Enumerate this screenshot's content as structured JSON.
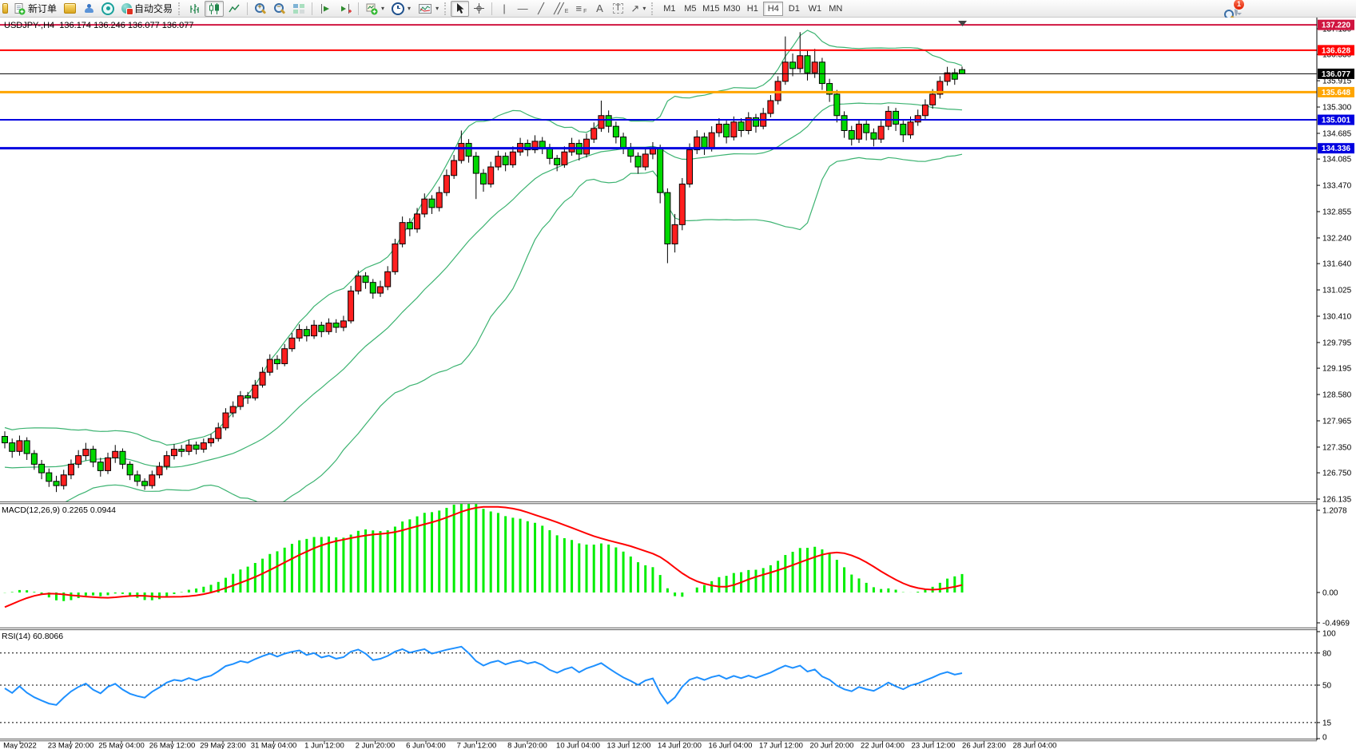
{
  "toolbar": {
    "new_order_label": "新订单",
    "auto_trading_label": "自动交易",
    "timeframes": [
      "M1",
      "M5",
      "M15",
      "M30",
      "H1",
      "H4",
      "D1",
      "W1",
      "MN"
    ],
    "active_timeframe": "H4",
    "notification_count": "1"
  },
  "icons": {
    "vline": "|",
    "hline": "—",
    "slash": "╱",
    "double_slash": "╱╱",
    "fib_lines": "≡",
    "letter_a": "A",
    "letter_t": "T",
    "arrow_ne": "↗",
    "caret": "▾",
    "sub_e": "E",
    "sub_f": "F",
    "plus": "+",
    "minus": "−"
  },
  "chart": {
    "title": "USDJPY-,H4  136.174 136.246 136.077 136.077"
  },
  "chart_data": {
    "type": "candlestick",
    "symbol": "USDJPY-",
    "timeframe": "H4",
    "current_bar": {
      "open": 136.174,
      "high": 136.246,
      "low": 136.077,
      "close": 136.077
    },
    "last_price": {
      "value": 136.077,
      "label": "136.077",
      "color": "#000000"
    },
    "price_axis_ticks": [
      137.13,
      136.53,
      135.915,
      135.3,
      134.685,
      134.085,
      133.47,
      132.855,
      132.24,
      131.64,
      131.025,
      130.41,
      129.795,
      129.195,
      128.58,
      127.965,
      127.35,
      126.75,
      126.135
    ],
    "time_axis_labels": [
      "May 2022",
      "23 May 20:00",
      "25 May 04:00",
      "26 May 12:00",
      "29 May 23:00",
      "31 May 04:00",
      "1 Jun 12:00",
      "2 Jun 20:00",
      "6 Jun 04:00",
      "7 Jun 12:00",
      "8 Jun 20:00",
      "10 Jun 04:00",
      "13 Jun 12:00",
      "14 Jun 20:00",
      "16 Jun 04:00",
      "17 Jun 12:00",
      "20 Jun 20:00",
      "22 Jun 04:00",
      "23 Jun 12:00",
      "26 Jun 23:00",
      "28 Jun 04:00"
    ],
    "horizontal_lines": [
      {
        "price": 137.22,
        "label": "137.220",
        "color": "#D01540",
        "width": 2
      },
      {
        "price": 136.628,
        "label": "136.628",
        "color": "#FF0000",
        "width": 2
      },
      {
        "price": 135.648,
        "label": "135.648",
        "color": "#FFA500",
        "width": 3
      },
      {
        "price": 135.001,
        "label": "135.001",
        "color": "#0000E0",
        "width": 2
      },
      {
        "price": 134.336,
        "label": "134.336",
        "color": "#0000E0",
        "width": 3
      }
    ],
    "candle_colors": {
      "up": "#ff1f1f",
      "down": "#00d800",
      "outline": "#000000"
    },
    "bollinger": {
      "period": 20,
      "deviation": 2,
      "color": "#3CB371"
    },
    "macd": {
      "label": "MACD(12,26,9) 0.2265 0.0944",
      "fast": 12,
      "slow": 26,
      "signal": 9,
      "value_main": 0.2265,
      "value_signal": 0.0944,
      "axis": {
        "max": 1.2078,
        "zero": "0.00",
        "min": -0.4969
      },
      "axis_labels": [
        "1.2078",
        "0.00",
        "-0.4969"
      ],
      "hist_color": "#00EE00",
      "signal_color": "#FF0000"
    },
    "rsi": {
      "label": "RSI(14) 60.8066",
      "period": 14,
      "value": 60.8066,
      "levels": [
        80,
        50,
        15
      ],
      "axis_labels": [
        "100",
        "80",
        "50",
        "15",
        "0"
      ],
      "color": "#1E90FF"
    },
    "history_closes": [
      127.75,
      127.55,
      127.35,
      127.1,
      126.85,
      126.65,
      126.5,
      126.4,
      126.3,
      126.25,
      126.3,
      126.45,
      126.4,
      126.6,
      126.8,
      127.0,
      127.2,
      127.35,
      127.5,
      127.6
    ],
    "candles": [
      [
        127.6,
        127.72,
        127.32,
        127.45
      ],
      [
        127.45,
        127.55,
        127.1,
        127.25
      ],
      [
        127.25,
        127.62,
        127.15,
        127.5
      ],
      [
        127.5,
        127.58,
        127.05,
        127.2
      ],
      [
        127.2,
        127.28,
        126.82,
        126.95
      ],
      [
        126.95,
        127.05,
        126.6,
        126.75
      ],
      [
        126.75,
        126.85,
        126.42,
        126.55
      ],
      [
        126.55,
        126.68,
        126.3,
        126.45
      ],
      [
        126.45,
        126.82,
        126.36,
        126.7
      ],
      [
        126.7,
        127.06,
        126.6,
        126.95
      ],
      [
        126.95,
        127.28,
        126.86,
        127.15
      ],
      [
        127.15,
        127.45,
        127.04,
        127.3
      ],
      [
        127.3,
        127.38,
        126.88,
        127.0
      ],
      [
        127.0,
        127.1,
        126.66,
        126.8
      ],
      [
        126.8,
        127.22,
        126.72,
        127.1
      ],
      [
        127.1,
        127.4,
        126.98,
        127.25
      ],
      [
        127.25,
        127.32,
        126.84,
        126.95
      ],
      [
        126.95,
        127.02,
        126.58,
        126.7
      ],
      [
        126.7,
        126.8,
        126.44,
        126.55
      ],
      [
        126.55,
        126.62,
        126.35,
        126.45
      ],
      [
        126.45,
        126.8,
        126.38,
        126.7
      ],
      [
        126.7,
        127.0,
        126.62,
        126.9
      ],
      [
        126.9,
        127.26,
        126.82,
        127.15
      ],
      [
        127.15,
        127.42,
        127.06,
        127.3
      ],
      [
        127.3,
        127.4,
        127.12,
        127.25
      ],
      [
        127.25,
        127.52,
        127.16,
        127.4
      ],
      [
        127.4,
        127.48,
        127.18,
        127.3
      ],
      [
        127.3,
        127.55,
        127.22,
        127.45
      ],
      [
        127.45,
        127.66,
        127.36,
        127.55
      ],
      [
        127.55,
        127.92,
        127.48,
        127.8
      ],
      [
        127.8,
        128.26,
        127.74,
        128.15
      ],
      [
        128.15,
        128.42,
        128.05,
        128.3
      ],
      [
        128.3,
        128.66,
        128.22,
        128.55
      ],
      [
        128.55,
        128.64,
        128.36,
        128.5
      ],
      [
        128.5,
        128.92,
        128.44,
        128.8
      ],
      [
        128.8,
        129.22,
        128.74,
        129.1
      ],
      [
        129.1,
        129.52,
        129.02,
        129.4
      ],
      [
        129.4,
        129.5,
        129.16,
        129.3
      ],
      [
        129.3,
        129.76,
        129.24,
        129.65
      ],
      [
        129.65,
        130.02,
        129.58,
        129.9
      ],
      [
        129.9,
        130.22,
        129.82,
        130.1
      ],
      [
        130.1,
        130.18,
        129.82,
        129.95
      ],
      [
        129.95,
        130.32,
        129.88,
        130.2
      ],
      [
        130.2,
        130.28,
        129.92,
        130.05
      ],
      [
        130.05,
        130.36,
        129.98,
        130.25
      ],
      [
        130.25,
        130.34,
        130.02,
        130.15
      ],
      [
        130.15,
        130.42,
        130.06,
        130.3
      ],
      [
        130.3,
        131.12,
        130.24,
        131.0
      ],
      [
        131.0,
        131.48,
        130.92,
        131.35
      ],
      [
        131.35,
        131.44,
        131.05,
        131.2
      ],
      [
        131.2,
        131.28,
        130.82,
        130.95
      ],
      [
        130.95,
        131.24,
        130.86,
        131.1
      ],
      [
        131.1,
        131.58,
        131.02,
        131.45
      ],
      [
        131.45,
        132.22,
        131.38,
        132.1
      ],
      [
        132.1,
        132.74,
        132.02,
        132.6
      ],
      [
        132.6,
        132.7,
        132.28,
        132.45
      ],
      [
        132.45,
        132.94,
        132.36,
        132.8
      ],
      [
        132.8,
        133.28,
        132.72,
        133.15
      ],
      [
        133.15,
        133.24,
        132.8,
        132.95
      ],
      [
        132.95,
        133.44,
        132.86,
        133.3
      ],
      [
        133.3,
        133.84,
        133.22,
        133.7
      ],
      [
        133.7,
        134.18,
        133.62,
        134.05
      ],
      [
        134.05,
        134.75,
        133.98,
        134.45
      ],
      [
        134.45,
        134.55,
        134.0,
        134.15
      ],
      [
        134.15,
        134.25,
        133.15,
        133.75
      ],
      [
        133.75,
        133.85,
        133.32,
        133.5
      ],
      [
        133.5,
        134.02,
        133.42,
        133.9
      ],
      [
        133.9,
        134.28,
        133.82,
        134.15
      ],
      [
        134.15,
        134.24,
        133.8,
        133.95
      ],
      [
        133.95,
        134.38,
        133.88,
        134.25
      ],
      [
        134.25,
        134.58,
        134.16,
        134.45
      ],
      [
        134.45,
        134.54,
        134.15,
        134.3
      ],
      [
        134.3,
        134.64,
        134.22,
        134.5
      ],
      [
        134.5,
        134.6,
        134.2,
        134.35
      ],
      [
        134.35,
        134.44,
        133.96,
        134.1
      ],
      [
        134.1,
        134.18,
        133.8,
        133.95
      ],
      [
        133.95,
        134.38,
        133.88,
        134.25
      ],
      [
        134.25,
        134.58,
        134.16,
        134.45
      ],
      [
        134.45,
        134.54,
        134.05,
        134.2
      ],
      [
        134.2,
        134.68,
        134.12,
        134.55
      ],
      [
        134.55,
        134.94,
        134.46,
        134.8
      ],
      [
        134.8,
        135.45,
        134.72,
        135.1
      ],
      [
        135.1,
        135.22,
        134.7,
        134.85
      ],
      [
        134.85,
        134.96,
        134.45,
        134.6
      ],
      [
        134.6,
        134.7,
        134.2,
        134.35
      ],
      [
        134.35,
        134.46,
        134.0,
        134.15
      ],
      [
        134.15,
        134.24,
        133.74,
        133.9
      ],
      [
        133.9,
        134.34,
        133.82,
        134.2
      ],
      [
        134.2,
        134.48,
        134.08,
        134.35
      ],
      [
        134.35,
        134.42,
        133.05,
        133.3
      ],
      [
        133.3,
        133.4,
        131.65,
        132.1
      ],
      [
        132.1,
        132.8,
        131.9,
        132.55
      ],
      [
        132.55,
        133.64,
        132.42,
        133.5
      ],
      [
        133.5,
        134.45,
        133.42,
        134.3
      ],
      [
        134.3,
        134.76,
        134.2,
        134.6
      ],
      [
        134.6,
        134.7,
        134.18,
        134.35
      ],
      [
        134.35,
        134.85,
        134.26,
        134.7
      ],
      [
        134.7,
        135.04,
        134.6,
        134.9
      ],
      [
        134.9,
        134.98,
        134.45,
        134.6
      ],
      [
        134.6,
        135.08,
        134.52,
        134.95
      ],
      [
        134.95,
        135.04,
        134.6,
        134.75
      ],
      [
        134.75,
        135.18,
        134.66,
        135.05
      ],
      [
        135.05,
        135.14,
        134.7,
        134.85
      ],
      [
        134.85,
        135.28,
        134.78,
        135.15
      ],
      [
        135.15,
        135.58,
        135.06,
        135.45
      ],
      [
        135.45,
        136.02,
        135.36,
        135.9
      ],
      [
        135.9,
        136.95,
        135.82,
        136.35
      ],
      [
        136.35,
        136.55,
        136.02,
        136.2
      ],
      [
        136.2,
        137.05,
        136.1,
        136.5
      ],
      [
        136.5,
        136.62,
        135.92,
        136.1
      ],
      [
        136.1,
        136.66,
        135.98,
        136.35
      ],
      [
        136.35,
        136.45,
        135.7,
        135.85
      ],
      [
        135.85,
        135.96,
        135.42,
        135.6
      ],
      [
        135.6,
        135.7,
        134.94,
        135.1
      ],
      [
        135.1,
        135.2,
        134.58,
        134.75
      ],
      [
        134.75,
        134.86,
        134.4,
        134.55
      ],
      [
        134.55,
        135.02,
        134.46,
        134.9
      ],
      [
        134.9,
        134.98,
        134.52,
        134.7
      ],
      [
        134.7,
        134.8,
        134.38,
        134.55
      ],
      [
        134.55,
        134.98,
        134.46,
        134.85
      ],
      [
        134.85,
        135.32,
        134.76,
        135.2
      ],
      [
        135.2,
        135.28,
        134.74,
        134.9
      ],
      [
        134.9,
        134.98,
        134.48,
        134.65
      ],
      [
        134.65,
        135.08,
        134.56,
        134.95
      ],
      [
        134.95,
        135.24,
        134.86,
        135.1
      ],
      [
        135.1,
        135.48,
        135.0,
        135.35
      ],
      [
        135.35,
        135.72,
        135.26,
        135.6
      ],
      [
        135.6,
        136.02,
        135.5,
        135.9
      ],
      [
        135.9,
        136.24,
        135.8,
        136.1
      ],
      [
        136.1,
        136.2,
        135.82,
        135.95
      ],
      [
        136.174,
        136.246,
        136.077,
        136.077
      ]
    ]
  }
}
